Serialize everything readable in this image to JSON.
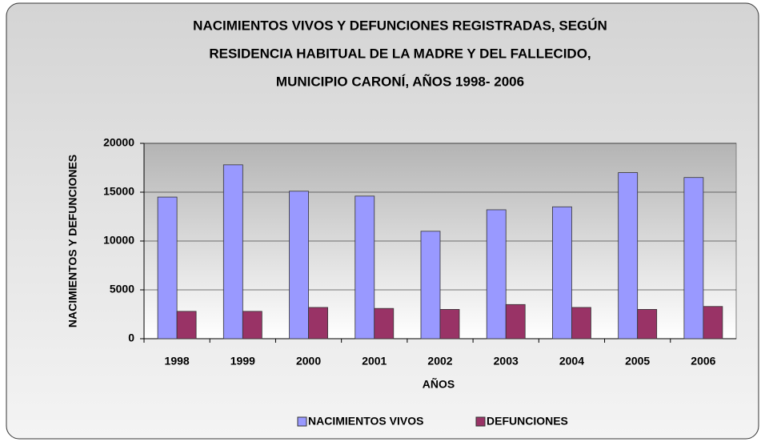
{
  "chart_data": {
    "type": "bar",
    "title": [
      "NACIMIENTOS VIVOS Y DEFUNCIONES REGISTRADAS, SEGÚN",
      "RESIDENCIA HABITUAL DE LA MADRE Y DEL FALLECIDO,",
      "MUNICIPIO CARONÍ,  AÑOS 1998- 2006"
    ],
    "x_label": "AÑOS",
    "y_label": "NACIMIENTOS Y DEFUNCIONES",
    "categories": [
      "1998",
      "1999",
      "2000",
      "2001",
      "2002",
      "2003",
      "2004",
      "2005",
      "2006"
    ],
    "series": [
      {
        "name": "NACIMIENTOS VIVOS",
        "color": "#9999ff",
        "values": [
          14500,
          17800,
          15100,
          14600,
          11000,
          13200,
          13500,
          17000,
          16500
        ]
      },
      {
        "name": "DEFUNCIONES",
        "color": "#993366",
        "values": [
          2800,
          2800,
          3200,
          3100,
          3000,
          3500,
          3200,
          3000,
          3300
        ]
      }
    ],
    "ylim": [
      0,
      20000
    ],
    "yticks": [
      0,
      5000,
      10000,
      15000,
      20000
    ],
    "grid": true,
    "legend": "bottom"
  }
}
